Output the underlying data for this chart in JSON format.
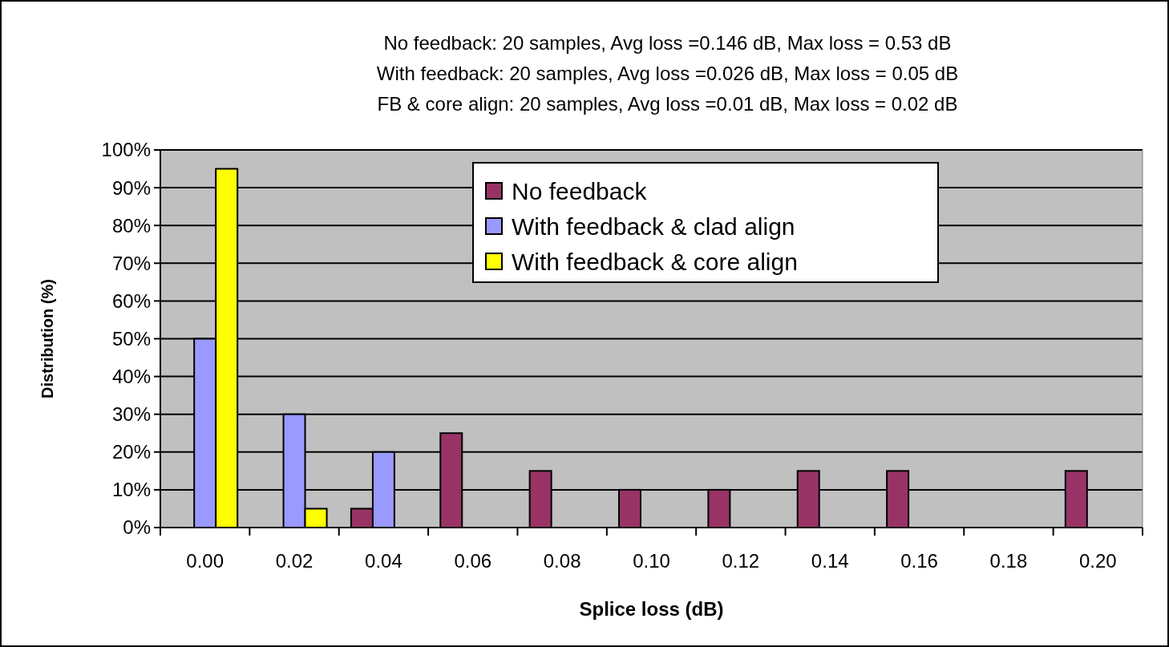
{
  "chart_data": {
    "type": "bar",
    "title": "No feedback: 20 samples, Avg loss =0.146 dB, Max loss = 0.53 dB\nWith feedback: 20 samples, Avg loss =0.026 dB, Max loss = 0.05 dB\nFB & core align: 20 samples, Avg loss =0.01 dB, Max loss = 0.02 dB",
    "xlabel": "Splice loss (dB)",
    "ylabel": "Distribution (%)",
    "categories": [
      "0.00",
      "0.02",
      "0.04",
      "0.06",
      "0.08",
      "0.10",
      "0.12",
      "0.14",
      "0.16",
      "0.18",
      "0.20"
    ],
    "series": [
      {
        "name": "No feedback",
        "color": "#993366",
        "values": [
          0,
          0,
          5,
          25,
          15,
          10,
          10,
          15,
          15,
          0,
          15
        ]
      },
      {
        "name": "With feedback & clad align",
        "color": "#9999ff",
        "values": [
          50,
          30,
          20,
          0,
          0,
          0,
          0,
          0,
          0,
          0,
          0
        ]
      },
      {
        "name": "With feedback & core align",
        "color": "#ffff00",
        "values": [
          95,
          5,
          0,
          0,
          0,
          0,
          0,
          0,
          0,
          0,
          0
        ]
      }
    ],
    "ylim": [
      0,
      100
    ],
    "yticks": [
      {
        "value": 0,
        "label": "0%"
      },
      {
        "value": 10,
        "label": "10%"
      },
      {
        "value": 20,
        "label": "20%"
      },
      {
        "value": 30,
        "label": "30%"
      },
      {
        "value": 40,
        "label": "40%"
      },
      {
        "value": 50,
        "label": "50%"
      },
      {
        "value": 60,
        "label": "60%"
      },
      {
        "value": 70,
        "label": "70%"
      },
      {
        "value": 80,
        "label": "80%"
      },
      {
        "value": 90,
        "label": "90%"
      },
      {
        "value": 100,
        "label": "100%"
      }
    ],
    "grid": "y",
    "legend": "top"
  }
}
